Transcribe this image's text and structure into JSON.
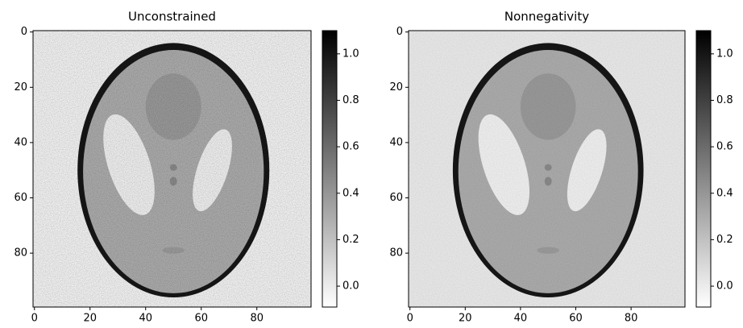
{
  "chart_data": [
    {
      "type": "image",
      "title": "Unconstrained",
      "colormap": "gray_r",
      "xlim": [
        -0.5,
        99.5
      ],
      "ylim": [
        99.5,
        -0.5
      ],
      "xticks": [
        0,
        20,
        40,
        60,
        80
      ],
      "yticks": [
        0,
        20,
        40,
        60,
        80
      ],
      "clim": [
        -0.09,
        1.1
      ],
      "cticks": [
        {
          "value": 0,
          "label": "0.0"
        },
        {
          "value": 0.2,
          "label": "0.2"
        },
        {
          "value": 0.4,
          "label": "0.4"
        },
        {
          "value": 0.6,
          "label": "0.6"
        },
        {
          "value": 0.8,
          "label": "0.8"
        },
        {
          "value": 1,
          "label": "1.0"
        }
      ]
    },
    {
      "type": "image",
      "title": "Nonnegativity",
      "colormap": "gray_r",
      "xlim": [
        -0.5,
        99.5
      ],
      "ylim": [
        99.5,
        -0.5
      ],
      "xticks": [
        0,
        20,
        40,
        60,
        80
      ],
      "yticks": [
        0,
        20,
        40,
        60,
        80
      ],
      "clim": [
        -0.09,
        1.1
      ],
      "cticks": [
        {
          "value": 0,
          "label": "0.0"
        },
        {
          "value": 0.2,
          "label": "0.2"
        },
        {
          "value": 0.4,
          "label": "0.4"
        },
        {
          "value": 0.6,
          "label": "0.6"
        },
        {
          "value": 0.8,
          "label": "0.8"
        },
        {
          "value": 1,
          "label": "1.0"
        }
      ]
    }
  ]
}
